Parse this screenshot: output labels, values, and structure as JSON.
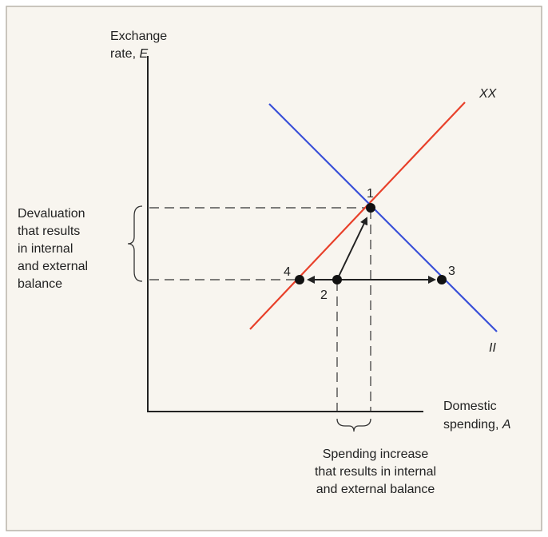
{
  "y_axis_label": {
    "line1": "Exchange",
    "line2": "rate,",
    "symbol": "E"
  },
  "x_axis_label": {
    "line1": "Domestic",
    "line2": "spending,",
    "symbol": "A"
  },
  "curves": [
    {
      "label": "XX",
      "color": "#e8402a"
    },
    {
      "label": "II",
      "color": "#3a50d8"
    }
  ],
  "points": [
    "1",
    "2",
    "3",
    "4"
  ],
  "left_annotation": [
    "Devaluation",
    "that results",
    "in internal",
    "and external",
    "balance"
  ],
  "bottom_annotation": [
    "Spending increase",
    "that results in internal",
    "and external balance"
  ]
}
